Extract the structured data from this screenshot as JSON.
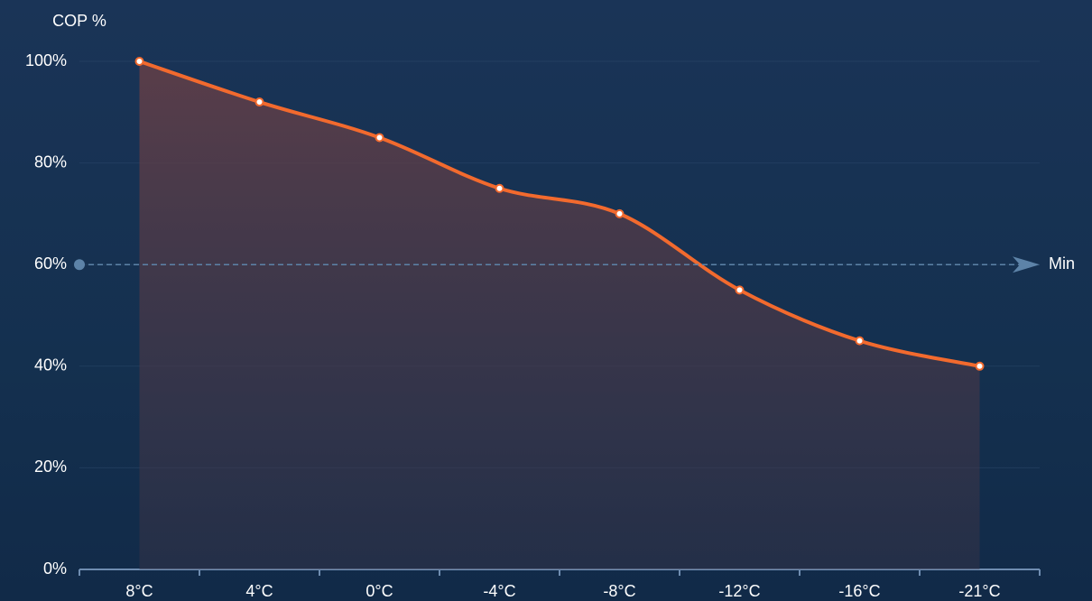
{
  "chart_data": {
    "type": "line",
    "y_axis_label": "COP %",
    "categories": [
      "8°C",
      "4°C",
      "0°C",
      "-4°C",
      "-8°C",
      "-12°C",
      "-16°C",
      "-21°C"
    ],
    "series": [
      {
        "name": "COP",
        "color": "#f26a2e",
        "values": [
          100,
          92,
          85,
          75,
          70,
          55,
          45,
          40
        ]
      }
    ],
    "ylim": [
      0,
      100
    ],
    "yticks": [
      {
        "value": 0,
        "label": "0%"
      },
      {
        "value": 20,
        "label": "20%"
      },
      {
        "value": 40,
        "label": "40%"
      },
      {
        "value": 60,
        "label": "60%"
      },
      {
        "value": 80,
        "label": "80%"
      },
      {
        "value": 100,
        "label": "100%"
      }
    ],
    "grid": true,
    "smooth": true,
    "area": true,
    "mark_line": {
      "value": 60,
      "label": "Min"
    }
  }
}
